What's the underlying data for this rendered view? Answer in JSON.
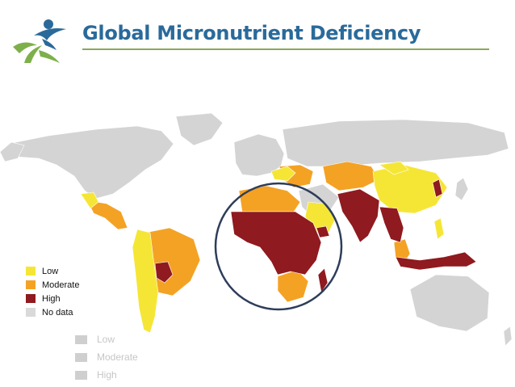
{
  "title": "Global Micronutrient Deficiency",
  "colors": {
    "low": "#f5e636",
    "moderate": "#f4a224",
    "high": "#8f1a1f",
    "no_data": "#d9d9d9",
    "base_map": "#d4d4d4",
    "title": "#2a6a9a",
    "rule": "#8aa85a"
  },
  "legend": [
    {
      "label": "Low",
      "color": "#f5e636"
    },
    {
      "label": "Moderate",
      "color": "#f4a224"
    },
    {
      "label": "High",
      "color": "#8f1a1f"
    },
    {
      "label": "No data",
      "color": "#d9d9d9"
    }
  ],
  "legend_faded": [
    {
      "label": "Low"
    },
    {
      "label": "Moderate"
    },
    {
      "label": "High"
    }
  ],
  "logo_icon": "organization-logo-icon"
}
